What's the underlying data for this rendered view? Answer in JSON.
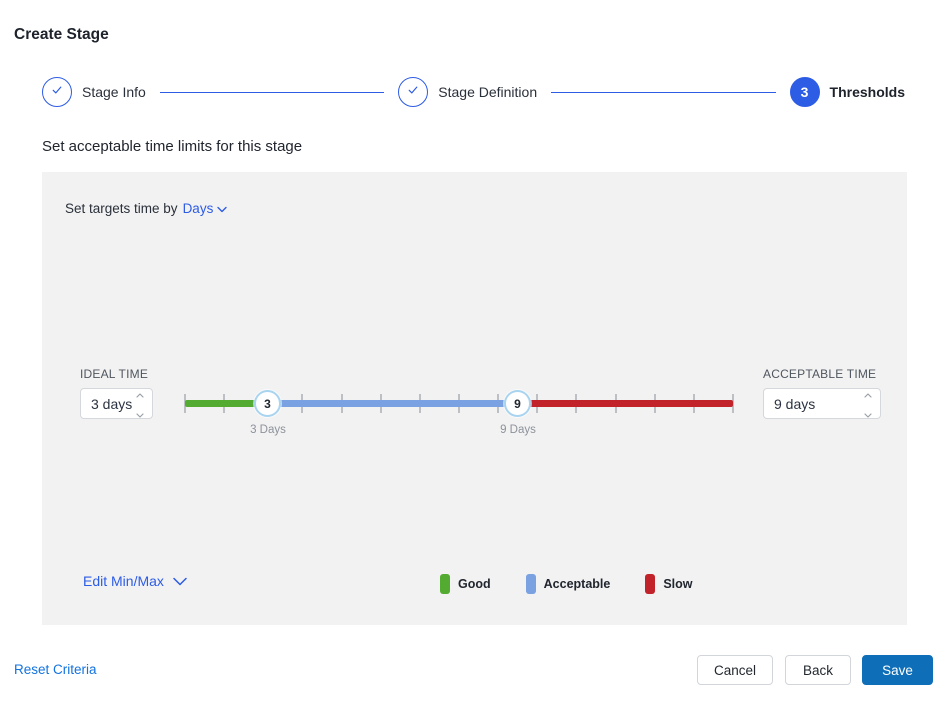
{
  "page": {
    "title": "Create Stage"
  },
  "stepper": {
    "steps": [
      {
        "label": "Stage Info",
        "state": "complete"
      },
      {
        "label": "Stage Definition",
        "state": "complete"
      },
      {
        "label": "Thresholds",
        "state": "current",
        "number": "3"
      }
    ]
  },
  "section": {
    "heading": "Set acceptable time limits for this stage"
  },
  "panel": {
    "targets_prefix": "Set targets time by",
    "targets_unit": "Days",
    "ideal": {
      "label": "IDEAL TIME",
      "value": "3 days"
    },
    "acceptable": {
      "label": "ACCEPTABLE TIME",
      "value": "9 days"
    },
    "slider": {
      "min_handle": {
        "value": "3",
        "label": "3 Days"
      },
      "max_handle": {
        "value": "9",
        "label": "9 Days"
      },
      "unit": "Days"
    },
    "edit_minmax_label": "Edit Min/Max",
    "legend": [
      {
        "label": "Good",
        "color": "#54ab32"
      },
      {
        "label": "Acceptable",
        "color": "#7aa1e2"
      },
      {
        "label": "Slow",
        "color": "#c2232b"
      }
    ]
  },
  "footer": {
    "reset_label": "Reset Criteria",
    "cancel_label": "Cancel",
    "back_label": "Back",
    "save_label": "Save"
  },
  "colors": {
    "accent_blue": "#2d5ce5",
    "link_blue": "#1273e0",
    "save_blue": "#0e6eb8",
    "good": "#54ab32",
    "acceptable": "#7aa1e2",
    "slow": "#c2232b",
    "handle_ring": "#a9d4ef",
    "panel_bg": "#f2f2f2"
  }
}
